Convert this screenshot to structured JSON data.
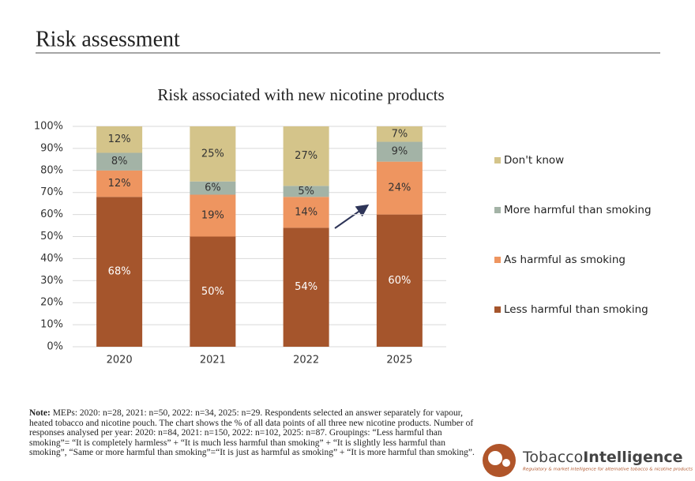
{
  "header": {
    "title": "Risk assessment"
  },
  "chart_data": {
    "type": "stacked-bar",
    "title": "Risk associated with new nicotine products",
    "categories": [
      "2020",
      "2021",
      "2022",
      "2025"
    ],
    "series": [
      {
        "name": "Less harmful than smoking",
        "color": "#a5552c",
        "label_color": "#ffffff",
        "values": [
          68,
          50,
          54,
          60
        ],
        "value_labels": [
          "68%",
          "50%",
          "54%",
          "60%"
        ]
      },
      {
        "name": "As harmful as smoking",
        "color": "#ee9560",
        "label_color": "#333333",
        "values": [
          12,
          19,
          14,
          24
        ],
        "value_labels": [
          "12%",
          "19%",
          "14%",
          "24%"
        ]
      },
      {
        "name": "More harmful than smoking",
        "color": "#a3b3a6",
        "label_color": "#333333",
        "values": [
          8,
          6,
          5,
          9
        ],
        "value_labels": [
          "8%",
          "6%",
          "5%",
          "9%"
        ]
      },
      {
        "name": "Don't know",
        "color": "#d4c48a",
        "label_color": "#333333",
        "values": [
          12,
          25,
          27,
          7
        ],
        "value_labels": [
          "12%",
          "25%",
          "27%",
          "7%"
        ]
      }
    ],
    "ylim": [
      0,
      100
    ],
    "yticks": [
      {
        "value": 0,
        "label": "0%"
      },
      {
        "value": 10,
        "label": "10%"
      },
      {
        "value": 20,
        "label": "20%"
      },
      {
        "value": 30,
        "label": "30%"
      },
      {
        "value": 40,
        "label": "40%"
      },
      {
        "value": 50,
        "label": "50%"
      },
      {
        "value": 60,
        "label": "60%"
      },
      {
        "value": 70,
        "label": "70%"
      },
      {
        "value": 80,
        "label": "80%"
      },
      {
        "value": 90,
        "label": "90%"
      },
      {
        "value": 100,
        "label": "100%"
      }
    ],
    "grid": true,
    "legend": "right"
  },
  "note": {
    "label": "Note:",
    "text": "MEPs: 2020: n=28, 2021: n=50, 2022: n=34, 2025: n=29. Respondents selected an answer separately for vapour, heated tobacco and nicotine pouch. The chart shows the % of all data points of all three new nicotine products. Number of responses analysed per year: 2020: n=84, 2021: n=150, 2022: n=102, 2025: n=87. Groupings: “Less harmful than smoking”= “It is completely harmless” + “It is much less harmful than smoking” + “It is slightly less harmful than smoking”, “Same or more harmful than smoking”=“It is just as harmful as smoking” + “It is more harmful than smoking”."
  },
  "logo": {
    "name_regular": "Tobacco",
    "name_bold": "Intelligence",
    "tagline": "Regulatory & market intelligence for alternative tobacco & nicotine products"
  }
}
